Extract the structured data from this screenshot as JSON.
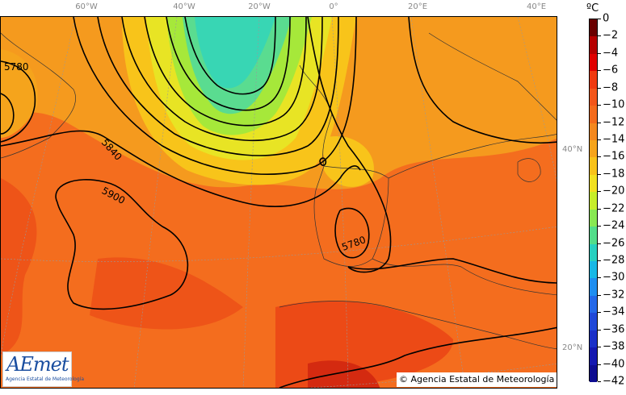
{
  "map": {
    "longitude_labels": [
      "60°W",
      "40°W",
      "20°W",
      "0°",
      "20°E",
      "40°E"
    ],
    "latitude_labels": [
      "40°N",
      "20°N"
    ],
    "contour_labels": [
      "5780",
      "5840",
      "5900",
      "5780"
    ]
  },
  "colorbar": {
    "unit": "ºC",
    "ticks": [
      "0",
      "−2",
      "−4",
      "−6",
      "−8",
      "−10",
      "−12",
      "−14",
      "−16",
      "−18",
      "−20",
      "−22",
      "−24",
      "−26",
      "−28",
      "−30",
      "−32",
      "−34",
      "−36",
      "−38",
      "−40",
      "−42"
    ],
    "colors": [
      "#6a0000",
      "#b50000",
      "#e00000",
      "#f03a10",
      "#f3561a",
      "#f46b1c",
      "#f4881e",
      "#f6a41c",
      "#f8c21a",
      "#f2e020",
      "#c7ee2a",
      "#88e852",
      "#52dd8a",
      "#28d0c0",
      "#18b8e6",
      "#1f8ef0",
      "#2468e8",
      "#2048d8",
      "#1a30c8",
      "#1418b0",
      "#0e0c90"
    ]
  },
  "logo": {
    "name": "AEmet",
    "subtitle": "Agencia Estatal de Meteorología"
  },
  "copyright": "© Agencia Estatal de Meteorología"
}
